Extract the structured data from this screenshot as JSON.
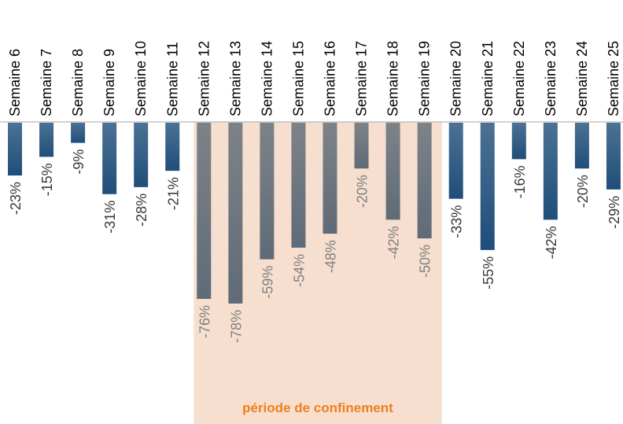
{
  "chart_data": {
    "type": "bar",
    "categories": [
      "Semaine 6",
      "Semaine 7",
      "Semaine 8",
      "Semaine 9",
      "Semaine 10",
      "Semaine 11",
      "Semaine 12",
      "Semaine 13",
      "Semaine 14",
      "Semaine 15",
      "Semaine 16",
      "Semaine 17",
      "Semaine 18",
      "Semaine 19",
      "Semaine 20",
      "Semaine 21",
      "Semaine 22",
      "Semaine 23",
      "Semaine 24",
      "Semaine 25"
    ],
    "values": [
      -23,
      -15,
      -9,
      -31,
      -28,
      -21,
      -76,
      -78,
      -59,
      -54,
      -48,
      -20,
      -42,
      -50,
      -33,
      -55,
      -16,
      -42,
      -20,
      -29
    ],
    "value_labels": [
      "-23%",
      "-15%",
      "-9%",
      "-31%",
      "-28%",
      "-21%",
      "-76%",
      "-78%",
      "-59%",
      "-54%",
      "-48%",
      "-20%",
      "-42%",
      "-50%",
      "-33%",
      "-55%",
      "-16%",
      "-42%",
      "-20%",
      "-29%"
    ],
    "color": "#1f4e79",
    "highlight": {
      "from": "Semaine 12",
      "to": "Semaine 19",
      "text": "période de confinement",
      "color": "#f6dfcf",
      "bar_color": "#5f6b77",
      "text_color": "#f07f1e"
    }
  }
}
